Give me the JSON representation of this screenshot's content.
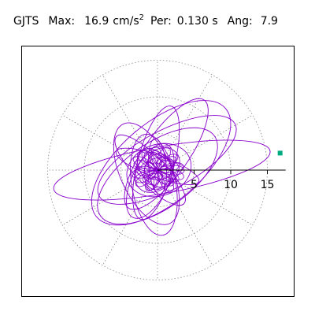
{
  "header": {
    "station": "GJTS",
    "max_label": "Max:",
    "max_value": "16.9",
    "max_unit_base": "cm/s",
    "max_unit_exp": "2",
    "per_label": "Per:",
    "per_value": "0.130 s",
    "ang_label": "Ang:",
    "ang_value": "7.9"
  },
  "chart_data": {
    "type": "scatter",
    "plot_kind": "polar particle-motion orbit",
    "units": "cm/s^2",
    "radial_ticks": [
      5,
      10,
      15
    ],
    "radial_tick_labels": [
      "5",
      "10",
      "15"
    ],
    "rmax": 17.5,
    "rings": [
      5,
      10,
      15
    ],
    "spoke_angles_deg": [
      0,
      30,
      60,
      90,
      120,
      150,
      180,
      210,
      240,
      270,
      300,
      330
    ],
    "grid": true,
    "peak": {
      "value": 16.9,
      "angle_deg": 7.9
    },
    "colors": {
      "trace": "#8800cc",
      "grid": "#888888",
      "axis": "#000000",
      "peak_marker": "#00aa80"
    },
    "trace_components": [
      {
        "a": 15.0,
        "b": 3.2,
        "rot_deg": 10,
        "dx": 0.6,
        "dy": 0.0
      },
      {
        "a": 11.5,
        "b": 5.5,
        "rot_deg": 40,
        "dx": 0.5,
        "dy": 1.0
      },
      {
        "a": 10.5,
        "b": 4.0,
        "rot_deg": 28,
        "dx": 1.3,
        "dy": 1.4
      },
      {
        "a": 9.0,
        "b": 3.0,
        "rot_deg": 55,
        "dx": 1.2,
        "dy": 2.2
      },
      {
        "a": 8.0,
        "b": 2.5,
        "rot_deg": 75,
        "dx": -0.2,
        "dy": 1.0
      },
      {
        "a": 7.5,
        "b": 3.5,
        "rot_deg": 115,
        "dx": -1.5,
        "dy": -0.5
      },
      {
        "a": 6.5,
        "b": 2.0,
        "rot_deg": 135,
        "dx": -1.0,
        "dy": 0.0
      },
      {
        "a": 9.5,
        "b": 4.5,
        "rot_deg": 35,
        "dx": 0.0,
        "dy": -0.8
      },
      {
        "a": 6.0,
        "b": 1.5,
        "rot_deg": 160,
        "dx": 0.0,
        "dy": 0.5
      },
      {
        "a": 7.0,
        "b": 3.0,
        "rot_deg": 100,
        "dx": -0.5,
        "dy": -2.0
      },
      {
        "a": 5.5,
        "b": 2.5,
        "rot_deg": 65,
        "dx": -1.0,
        "dy": -1.5
      },
      {
        "a": 4.5,
        "b": 3.5,
        "rot_deg": 20,
        "dx": 0.2,
        "dy": 0.0
      },
      {
        "a": 3.5,
        "b": 2.5,
        "rot_deg": 45,
        "dx": 0.0,
        "dy": 0.0
      },
      {
        "a": 3.0,
        "b": 2.0,
        "rot_deg": 130,
        "dx": -0.3,
        "dy": 0.3
      },
      {
        "a": 2.5,
        "b": 1.8,
        "rot_deg": 80,
        "dx": 0.0,
        "dy": -0.2
      },
      {
        "a": 2.0,
        "b": 1.5,
        "rot_deg": 10,
        "dx": 0.2,
        "dy": 0.2
      },
      {
        "a": 3.8,
        "b": 1.2,
        "rot_deg": 95,
        "dx": 0.0,
        "dy": 0.5
      }
    ]
  }
}
